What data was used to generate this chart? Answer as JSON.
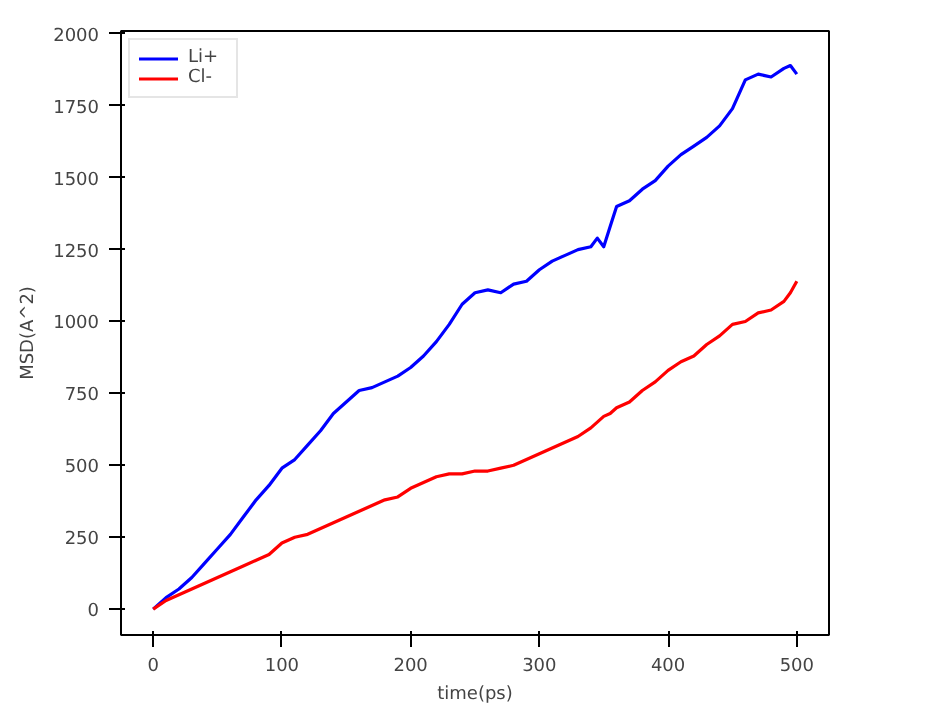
{
  "chart_data": {
    "type": "line",
    "xlabel": "time(ps)",
    "ylabel": "MSD(A^2)",
    "xlim": [
      -25,
      525
    ],
    "ylim": [
      -90,
      2010
    ],
    "xticks": [
      0,
      100,
      200,
      300,
      400,
      500
    ],
    "yticks": [
      0,
      250,
      500,
      750,
      1000,
      1250,
      1500,
      1750,
      2000
    ],
    "grid": false,
    "legend": "top left",
    "line_style": "solid",
    "marker": "none",
    "x": [
      0,
      10,
      20,
      30,
      40,
      50,
      60,
      70,
      80,
      90,
      100,
      110,
      120,
      130,
      140,
      150,
      160,
      170,
      180,
      190,
      200,
      210,
      220,
      230,
      240,
      250,
      260,
      270,
      280,
      290,
      300,
      310,
      320,
      330,
      340,
      345,
      350,
      355,
      360,
      370,
      380,
      390,
      400,
      410,
      420,
      430,
      440,
      450,
      460,
      470,
      480,
      490,
      495,
      500
    ],
    "series": [
      {
        "name": "Li+",
        "color": "#0000ff",
        "values": [
          0,
          40,
          70,
          110,
          160,
          210,
          260,
          320,
          380,
          430,
          490,
          520,
          570,
          620,
          680,
          720,
          760,
          770,
          790,
          810,
          840,
          880,
          930,
          990,
          1060,
          1100,
          1110,
          1100,
          1130,
          1140,
          1180,
          1210,
          1230,
          1250,
          1260,
          1290,
          1260,
          1330,
          1400,
          1420,
          1460,
          1490,
          1540,
          1580,
          1610,
          1640,
          1680,
          1740,
          1840,
          1860,
          1850,
          1880,
          1890,
          1860
        ]
      },
      {
        "name": "Cl-",
        "color": "#ff0000",
        "values": [
          0,
          30,
          50,
          70,
          90,
          110,
          130,
          150,
          170,
          190,
          230,
          250,
          260,
          280,
          300,
          320,
          340,
          360,
          380,
          390,
          420,
          440,
          460,
          470,
          470,
          480,
          480,
          490,
          500,
          520,
          540,
          560,
          580,
          600,
          630,
          650,
          670,
          680,
          700,
          720,
          760,
          790,
          830,
          860,
          880,
          920,
          950,
          990,
          1000,
          1030,
          1040,
          1070,
          1100,
          1140
        ]
      }
    ]
  }
}
